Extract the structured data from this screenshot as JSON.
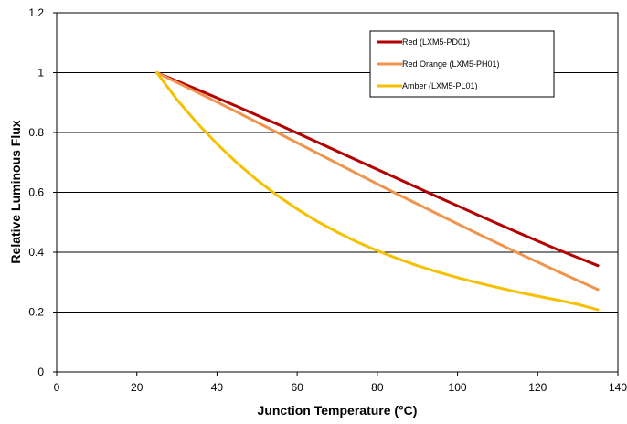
{
  "chart_data": {
    "type": "line",
    "xlabel": "Junction Temperature (°C)",
    "ylabel": "Relative Luminous Flux",
    "xlim": [
      0,
      140
    ],
    "ylim": [
      0,
      1.2
    ],
    "xticks": [
      0,
      20,
      40,
      60,
      80,
      100,
      120,
      140
    ],
    "yticks": [
      0,
      0.2,
      0.4,
      0.6,
      0.8,
      1,
      1.2
    ],
    "grid": "horizontal",
    "legend_position": "top-right",
    "series": [
      {
        "name": "Red (LXM5-PD01)",
        "color": "#b30000",
        "x": [
          25,
          35,
          45,
          55,
          65,
          75,
          85,
          95,
          105,
          115,
          125,
          135
        ],
        "y": [
          1.0,
          0.944,
          0.887,
          0.828,
          0.768,
          0.707,
          0.646,
          0.585,
          0.525,
          0.466,
          0.409,
          0.355
        ]
      },
      {
        "name": "Red Orange (LXM5-PH01)",
        "color": "#f0944d",
        "x": [
          25,
          35,
          45,
          55,
          65,
          75,
          85,
          95,
          105,
          115,
          125,
          135
        ],
        "y": [
          1.0,
          0.935,
          0.868,
          0.8,
          0.731,
          0.662,
          0.594,
          0.528,
          0.462,
          0.398,
          0.336,
          0.275
        ]
      },
      {
        "name": "Amber (LXM5-PL01)",
        "color": "#f5c000",
        "x": [
          25,
          30,
          35,
          40,
          45,
          50,
          55,
          60,
          65,
          70,
          75,
          80,
          85,
          90,
          95,
          100,
          105,
          110,
          115,
          120,
          125,
          130,
          135
        ],
        "y": [
          1.0,
          0.91,
          0.832,
          0.762,
          0.698,
          0.641,
          0.59,
          0.544,
          0.503,
          0.467,
          0.434,
          0.405,
          0.379,
          0.355,
          0.334,
          0.315,
          0.298,
          0.282,
          0.267,
          0.253,
          0.24,
          0.226,
          0.208
        ]
      }
    ]
  }
}
